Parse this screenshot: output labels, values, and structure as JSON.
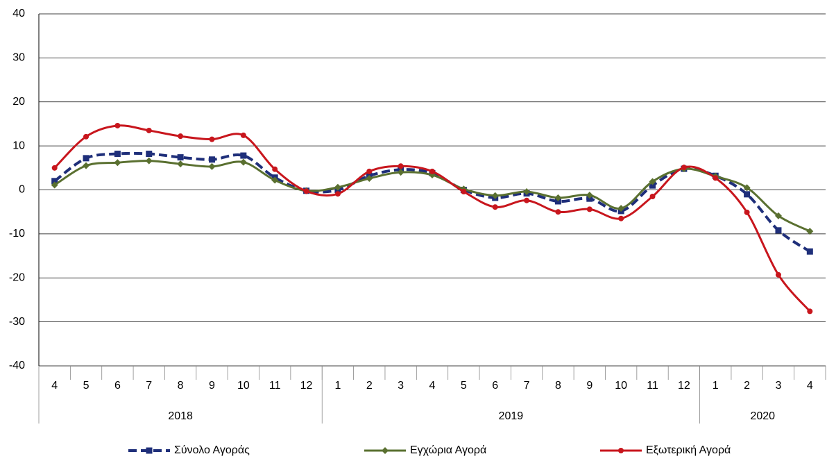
{
  "chart_data": {
    "type": "line",
    "groups": [
      {
        "label": "2018",
        "categories": [
          "4",
          "5",
          "6",
          "7",
          "8",
          "9",
          "10",
          "11",
          "12"
        ]
      },
      {
        "label": "2019",
        "categories": [
          "1",
          "2",
          "3",
          "4",
          "5",
          "6",
          "7",
          "8",
          "9",
          "10",
          "11",
          "12"
        ]
      },
      {
        "label": "2020",
        "categories": [
          "1",
          "2",
          "3",
          "4"
        ]
      }
    ],
    "series": [
      {
        "name": "Σύνολο Αγοράς",
        "color": "#1f2f7a",
        "marker": "square",
        "dashed": true,
        "values": [
          2,
          7.2,
          8.2,
          8.2,
          7.4,
          6.9,
          7.8,
          2.8,
          -0.2,
          0,
          3.2,
          4.6,
          3.8,
          0,
          -1.8,
          -0.8,
          -2.6,
          -2,
          -4.8,
          1,
          4.8,
          3.2,
          -1,
          -9.2,
          -14
        ]
      },
      {
        "name": "Εγχώρια Αγορά",
        "color": "#5a7030",
        "marker": "diamond",
        "dashed": false,
        "values": [
          1.1,
          5.5,
          6.2,
          6.6,
          5.9,
          5.3,
          6.3,
          2.2,
          -0.2,
          0.6,
          2.6,
          4,
          3.4,
          0.2,
          -1.3,
          -0.4,
          -1.8,
          -1.2,
          -4.2,
          1.9,
          4.8,
          3.1,
          0.5,
          -5.9,
          -9.4
        ]
      },
      {
        "name": "Εξωτερική Αγορά",
        "color": "#c8161d",
        "marker": "circle",
        "dashed": false,
        "values": [
          5,
          12.1,
          14.6,
          13.5,
          12.2,
          11.5,
          12.4,
          4.7,
          -0.3,
          -0.9,
          4.2,
          5.4,
          4.2,
          -0.4,
          -3.9,
          -2.4,
          -5,
          -4.4,
          -6.5,
          -1.5,
          5.1,
          2.7,
          -5.1,
          -19.3,
          -27.6
        ]
      }
    ],
    "ylim": [
      -40,
      40
    ],
    "yticks": [
      -40,
      -30,
      -20,
      -10,
      0,
      10,
      20,
      30,
      40
    ],
    "grid": true,
    "legend": "bottom"
  }
}
